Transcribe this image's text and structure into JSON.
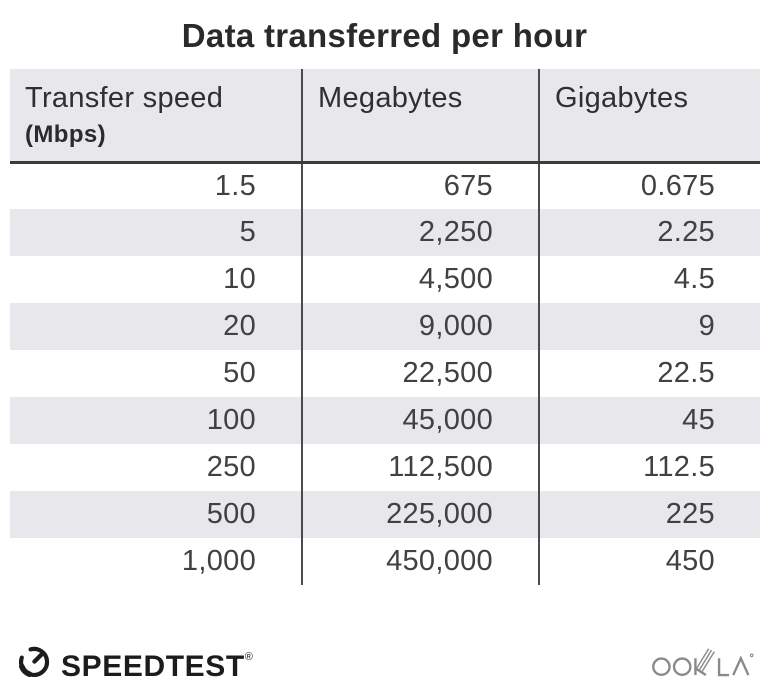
{
  "title": "Data transferred per hour",
  "table": {
    "columns": [
      {
        "label": "Transfer speed",
        "sublabel": "(Mbps)"
      },
      {
        "label": "Megabytes"
      },
      {
        "label": "Gigabytes"
      }
    ],
    "rows": [
      [
        "1.5",
        "675",
        "0.675"
      ],
      [
        "5",
        "2,250",
        "2.25"
      ],
      [
        "10",
        "4,500",
        "4.5"
      ],
      [
        "20",
        "9,000",
        "9"
      ],
      [
        "50",
        "22,500",
        "22.5"
      ],
      [
        "100",
        "45,000",
        "45"
      ],
      [
        "250",
        "112,500",
        "112.5"
      ],
      [
        "500",
        "225,000",
        "225"
      ],
      [
        "1,000",
        "450,000",
        "450"
      ]
    ]
  },
  "chart_data": {
    "type": "table",
    "title": "Data transferred per hour",
    "columns": [
      "Transfer speed (Mbps)",
      "Megabytes",
      "Gigabytes"
    ],
    "rows": [
      [
        1.5,
        675,
        0.675
      ],
      [
        5,
        2250,
        2.25
      ],
      [
        10,
        4500,
        4.5
      ],
      [
        20,
        9000,
        9
      ],
      [
        50,
        22500,
        22.5
      ],
      [
        100,
        45000,
        45
      ],
      [
        250,
        112500,
        112.5
      ],
      [
        500,
        225000,
        225
      ],
      [
        1000,
        450000,
        450
      ]
    ]
  },
  "footer": {
    "speedtest_label": "SPEEDTEST",
    "speedtest_registered": "®",
    "ookla_label": "OOKLA",
    "icons": {
      "gauge": "speedtest-gauge-icon",
      "wordmark": "ookla-wordmark-icon"
    }
  },
  "colors": {
    "stripe_gray": "#e8e7eb",
    "header_gray": "#e8e7eb",
    "divider_dark": "#4b4b4b",
    "header_rule": "#3c3c3c",
    "title_text": "#2a2a2a",
    "cell_text": "#414141",
    "speedtest_black": "#1c1c1c",
    "ookla_gray": "#8a898b"
  }
}
